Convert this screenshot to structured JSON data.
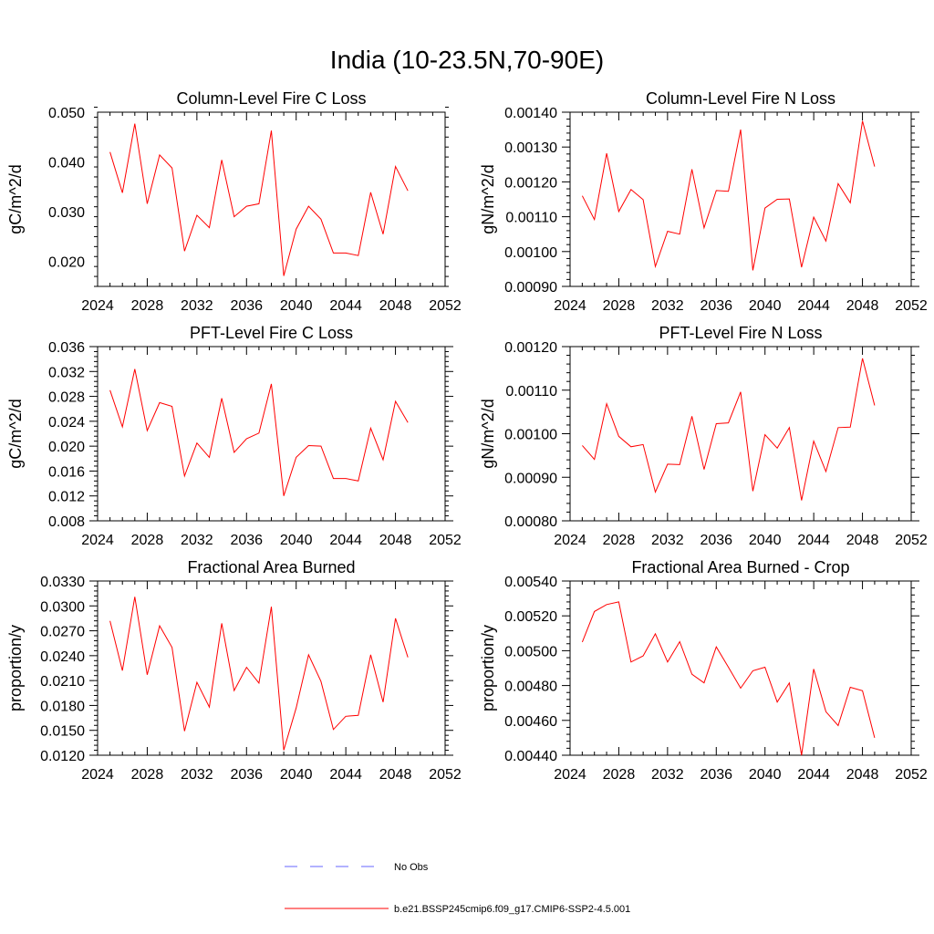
{
  "title": "India (10-23.5N,70-90E)",
  "colors": {
    "model": "#ff0000",
    "obs": "#6666ff",
    "axis": "#000000"
  },
  "legend": [
    {
      "label": "No Obs",
      "style": "dashed",
      "color": "#6666ff"
    },
    {
      "label": "b.e21.BSSP245cmip6.f09_g17.CMIP6-SSP2-4.5.001",
      "style": "solid",
      "color": "#ff0000"
    }
  ],
  "chart_data": [
    {
      "type": "line",
      "title": "Column-Level Fire C Loss",
      "ylabel": "gC/m^2/d",
      "xlim": [
        2024,
        2052
      ],
      "ylim": [
        0.015,
        0.05
      ],
      "xticks": [
        2024,
        2028,
        2032,
        2036,
        2040,
        2044,
        2048,
        2052
      ],
      "xtick_labels": [
        "2024",
        "2028",
        "2032",
        "2036",
        "2040",
        "2044",
        "2048",
        "2052"
      ],
      "yticks": [
        0.02,
        0.03,
        0.04,
        0.05
      ],
      "ytick_labels": [
        "0.020",
        "0.030",
        "0.040",
        "0.050"
      ],
      "x": [
        2025,
        2026,
        2027,
        2028,
        2029,
        2030,
        2031,
        2032,
        2033,
        2034,
        2035,
        2036,
        2037,
        2038,
        2039,
        2040,
        2041,
        2042,
        2043,
        2044,
        2045,
        2046,
        2047,
        2048,
        2049
      ],
      "series": [
        {
          "values": [
            0.042,
            0.0338,
            0.0477,
            0.0316,
            0.0414,
            0.0388,
            0.0221,
            0.0293,
            0.0268,
            0.0404,
            0.029,
            0.0311,
            0.0316,
            0.0463,
            0.0171,
            0.0265,
            0.0311,
            0.0285,
            0.0217,
            0.0217,
            0.0212,
            0.0339,
            0.0255,
            0.0391,
            0.0342
          ]
        }
      ]
    },
    {
      "type": "line",
      "title": "Column-Level Fire N Loss",
      "ylabel": "gN/m^2/d",
      "xlim": [
        2024,
        2052
      ],
      "ylim": [
        0.0009,
        0.0014
      ],
      "xticks": [
        2024,
        2028,
        2032,
        2036,
        2040,
        2044,
        2048,
        2052
      ],
      "xtick_labels": [
        "2024",
        "2028",
        "2032",
        "2036",
        "2040",
        "2044",
        "2048",
        "2052"
      ],
      "yticks": [
        0.0009,
        0.001,
        0.0011,
        0.0012,
        0.0013,
        0.0014
      ],
      "ytick_labels": [
        "0.00090",
        "0.00100",
        "0.00110",
        "0.00120",
        "0.00130",
        "0.00140"
      ],
      "x": [
        2025,
        2026,
        2027,
        2028,
        2029,
        2030,
        2031,
        2032,
        2033,
        2034,
        2035,
        2036,
        2037,
        2038,
        2039,
        2040,
        2041,
        2042,
        2043,
        2044,
        2045,
        2046,
        2047,
        2048,
        2049
      ],
      "series": [
        {
          "values": [
            0.00116,
            0.001092,
            0.001282,
            0.001115,
            0.001178,
            0.001149,
            0.000957,
            0.001058,
            0.00105,
            0.001236,
            0.001068,
            0.001175,
            0.001173,
            0.00135,
            0.000946,
            0.001125,
            0.00115,
            0.001151,
            0.000955,
            0.001099,
            0.00103,
            0.001195,
            0.00114,
            0.001375,
            0.001244
          ]
        }
      ]
    },
    {
      "type": "line",
      "title": "PFT-Level Fire C Loss",
      "ylabel": "gC/m^2/d",
      "xlim": [
        2024,
        2052
      ],
      "ylim": [
        0.008,
        0.036
      ],
      "xticks": [
        2024,
        2028,
        2032,
        2036,
        2040,
        2044,
        2048,
        2052
      ],
      "xtick_labels": [
        "2024",
        "2028",
        "2032",
        "2036",
        "2040",
        "2044",
        "2048",
        "2052"
      ],
      "yticks": [
        0.008,
        0.012,
        0.016,
        0.02,
        0.024,
        0.028,
        0.032,
        0.036
      ],
      "ytick_labels": [
        "0.008",
        "0.012",
        "0.016",
        "0.020",
        "0.024",
        "0.028",
        "0.032",
        "0.036"
      ],
      "x": [
        2025,
        2026,
        2027,
        2028,
        2029,
        2030,
        2031,
        2032,
        2033,
        2034,
        2035,
        2036,
        2037,
        2038,
        2039,
        2040,
        2041,
        2042,
        2043,
        2044,
        2045,
        2046,
        2047,
        2048,
        2049
      ],
      "series": [
        {
          "values": [
            0.029,
            0.0231,
            0.0324,
            0.0225,
            0.027,
            0.0264,
            0.0152,
            0.0205,
            0.0182,
            0.0277,
            0.019,
            0.0212,
            0.0221,
            0.03,
            0.012,
            0.0182,
            0.0201,
            0.02,
            0.0148,
            0.0148,
            0.0144,
            0.0229,
            0.0178,
            0.0272,
            0.0238
          ]
        }
      ]
    },
    {
      "type": "line",
      "title": "PFT-Level Fire N Loss",
      "ylabel": "gN/m^2/d",
      "xlim": [
        2024,
        2052
      ],
      "ylim": [
        0.0008,
        0.0012
      ],
      "xticks": [
        2024,
        2028,
        2032,
        2036,
        2040,
        2044,
        2048,
        2052
      ],
      "xtick_labels": [
        "2024",
        "2028",
        "2032",
        "2036",
        "2040",
        "2044",
        "2048",
        "2052"
      ],
      "yticks": [
        0.0008,
        0.0009,
        0.001,
        0.0011,
        0.0012
      ],
      "ytick_labels": [
        "0.00080",
        "0.00090",
        "0.00100",
        "0.00110",
        "0.00120"
      ],
      "x": [
        2025,
        2026,
        2027,
        2028,
        2029,
        2030,
        2031,
        2032,
        2033,
        2034,
        2035,
        2036,
        2037,
        2038,
        2039,
        2040,
        2041,
        2042,
        2043,
        2044,
        2045,
        2046,
        2047,
        2048,
        2049
      ],
      "series": [
        {
          "values": [
            0.000973,
            0.000941,
            0.001069,
            0.000994,
            0.00097,
            0.000975,
            0.000866,
            0.00093,
            0.000929,
            0.00104,
            0.000918,
            0.001023,
            0.001025,
            0.001096,
            0.000868,
            0.000998,
            0.000967,
            0.001014,
            0.000847,
            0.000983,
            0.000913,
            0.001014,
            0.001015,
            0.001173,
            0.001065
          ]
        }
      ]
    },
    {
      "type": "line",
      "title": "Fractional Area Burned",
      "ylabel": "proportion/y",
      "xlim": [
        2024,
        2052
      ],
      "ylim": [
        0.012,
        0.033
      ],
      "xticks": [
        2024,
        2028,
        2032,
        2036,
        2040,
        2044,
        2048,
        2052
      ],
      "xtick_labels": [
        "2024",
        "2028",
        "2032",
        "2036",
        "2040",
        "2044",
        "2048",
        "2052"
      ],
      "yticks": [
        0.012,
        0.015,
        0.018,
        0.021,
        0.024,
        0.027,
        0.03,
        0.033
      ],
      "ytick_labels": [
        "0.0120",
        "0.0150",
        "0.0180",
        "0.0210",
        "0.0240",
        "0.0270",
        "0.0300",
        "0.0330"
      ],
      "x": [
        2025,
        2026,
        2027,
        2028,
        2029,
        2030,
        2031,
        2032,
        2033,
        2034,
        2035,
        2036,
        2037,
        2038,
        2039,
        2040,
        2041,
        2042,
        2043,
        2044,
        2045,
        2046,
        2047,
        2048,
        2049
      ],
      "series": [
        {
          "values": [
            0.0282,
            0.0222,
            0.0311,
            0.0217,
            0.0276,
            0.025,
            0.0149,
            0.0208,
            0.0178,
            0.0279,
            0.0198,
            0.0226,
            0.0207,
            0.0299,
            0.0126,
            0.0177,
            0.0241,
            0.0209,
            0.0151,
            0.0167,
            0.0168,
            0.0241,
            0.0184,
            0.0285,
            0.0238
          ]
        }
      ]
    },
    {
      "type": "line",
      "title": "Fractional Area Burned - Crop",
      "ylabel": "proportion/y",
      "xlim": [
        2024,
        2052
      ],
      "ylim": [
        0.0044,
        0.0054
      ],
      "xticks": [
        2024,
        2028,
        2032,
        2036,
        2040,
        2044,
        2048,
        2052
      ],
      "xtick_labels": [
        "2024",
        "2028",
        "2032",
        "2036",
        "2040",
        "2044",
        "2048",
        "2052"
      ],
      "yticks": [
        0.0044,
        0.0046,
        0.0048,
        0.005,
        0.0052,
        0.0054
      ],
      "ytick_labels": [
        "0.00440",
        "0.00460",
        "0.00480",
        "0.00500",
        "0.00520",
        "0.00540"
      ],
      "x": [
        2025,
        2026,
        2027,
        2028,
        2029,
        2030,
        2031,
        2032,
        2033,
        2034,
        2035,
        2036,
        2037,
        2038,
        2039,
        2040,
        2041,
        2042,
        2043,
        2044,
        2045,
        2046,
        2047,
        2048,
        2049
      ],
      "series": [
        {
          "values": [
            0.00505,
            0.005225,
            0.005265,
            0.00528,
            0.004935,
            0.00497,
            0.005097,
            0.004935,
            0.005052,
            0.004865,
            0.004815,
            0.005022,
            0.004905,
            0.004785,
            0.004885,
            0.004905,
            0.004705,
            0.004815,
            0.0044,
            0.004895,
            0.00465,
            0.00457,
            0.00479,
            0.00477,
            0.0045
          ]
        }
      ]
    }
  ]
}
